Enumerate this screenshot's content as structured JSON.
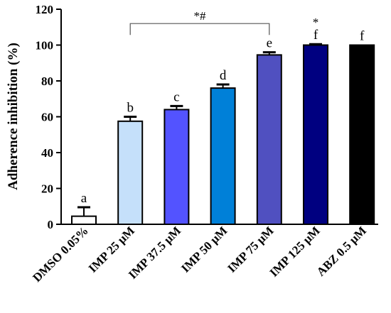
{
  "chart_data": {
    "type": "bar",
    "title": "",
    "xlabel": "",
    "ylabel": "Adherence inhibition (%)",
    "ylim": [
      0,
      120
    ],
    "yticks": [
      0,
      20,
      40,
      60,
      80,
      100,
      120
    ],
    "grid": false,
    "legend": "none",
    "categories": [
      "DMSO 0.05%",
      "IMP 25 μM",
      "IMP 37.5 μM",
      "IMP 50 μM",
      "IMP 75 μM",
      "IMP 125 μM",
      "ABZ 0.5 μM"
    ],
    "values": [
      4.5,
      57.5,
      64,
      76,
      94.5,
      100,
      100
    ],
    "errors": [
      5,
      2.5,
      2,
      2,
      1.5,
      0.5,
      0
    ],
    "bar_colors": [
      "#ffffff",
      "#c5e0fa",
      "#5353ff",
      "#0080d8",
      "#5050c0",
      "#000080",
      "#000000"
    ],
    "letters": [
      "a",
      "b",
      "c",
      "d",
      "e",
      "f",
      "f"
    ],
    "extra_marks": [
      "",
      "",
      "",
      "",
      "",
      "*",
      ""
    ],
    "comparison": {
      "from": 1,
      "to": 4,
      "label": "*#",
      "y": 112
    }
  }
}
